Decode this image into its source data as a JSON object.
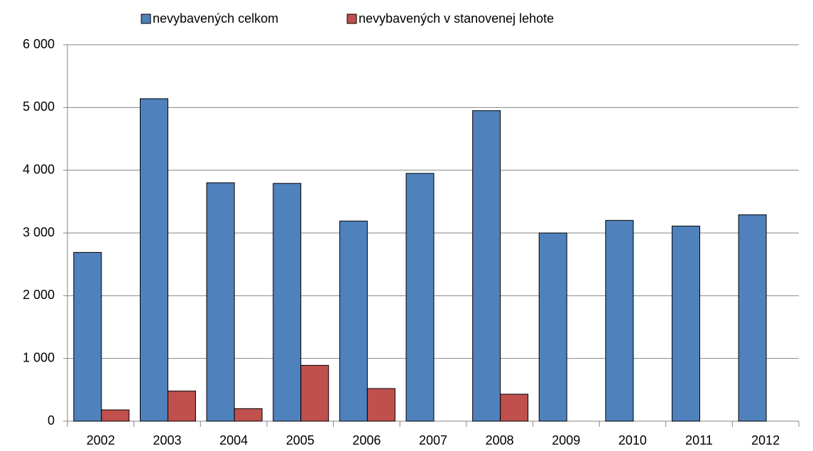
{
  "chart_data": {
    "type": "bar",
    "categories": [
      "2002",
      "2003",
      "2004",
      "2005",
      "2006",
      "2007",
      "2008",
      "2009",
      "2010",
      "2011",
      "2012"
    ],
    "series": [
      {
        "name": "nevybavených celkom",
        "color": "#4f81bd",
        "values": [
          2690,
          5140,
          3800,
          3790,
          3190,
          3950,
          4950,
          3000,
          3200,
          3110,
          3290
        ]
      },
      {
        "name": "nevybavených v stanovenej lehote",
        "color": "#c0504d",
        "values": [
          180,
          480,
          200,
          890,
          520,
          null,
          430,
          null,
          null,
          null,
          null
        ]
      }
    ],
    "ylim": [
      0,
      6000
    ],
    "yticks": [
      0,
      {
        "value": 1000,
        "label": "1 000"
      },
      {
        "value": 2000,
        "label": "2 000"
      },
      {
        "value": 3000,
        "label": "3 000"
      },
      {
        "value": 4000,
        "label": "4 000"
      },
      {
        "value": 5000,
        "label": "5 000"
      },
      {
        "value": 6000,
        "label": "6 000"
      }
    ],
    "grid": true,
    "legend": "top"
  }
}
